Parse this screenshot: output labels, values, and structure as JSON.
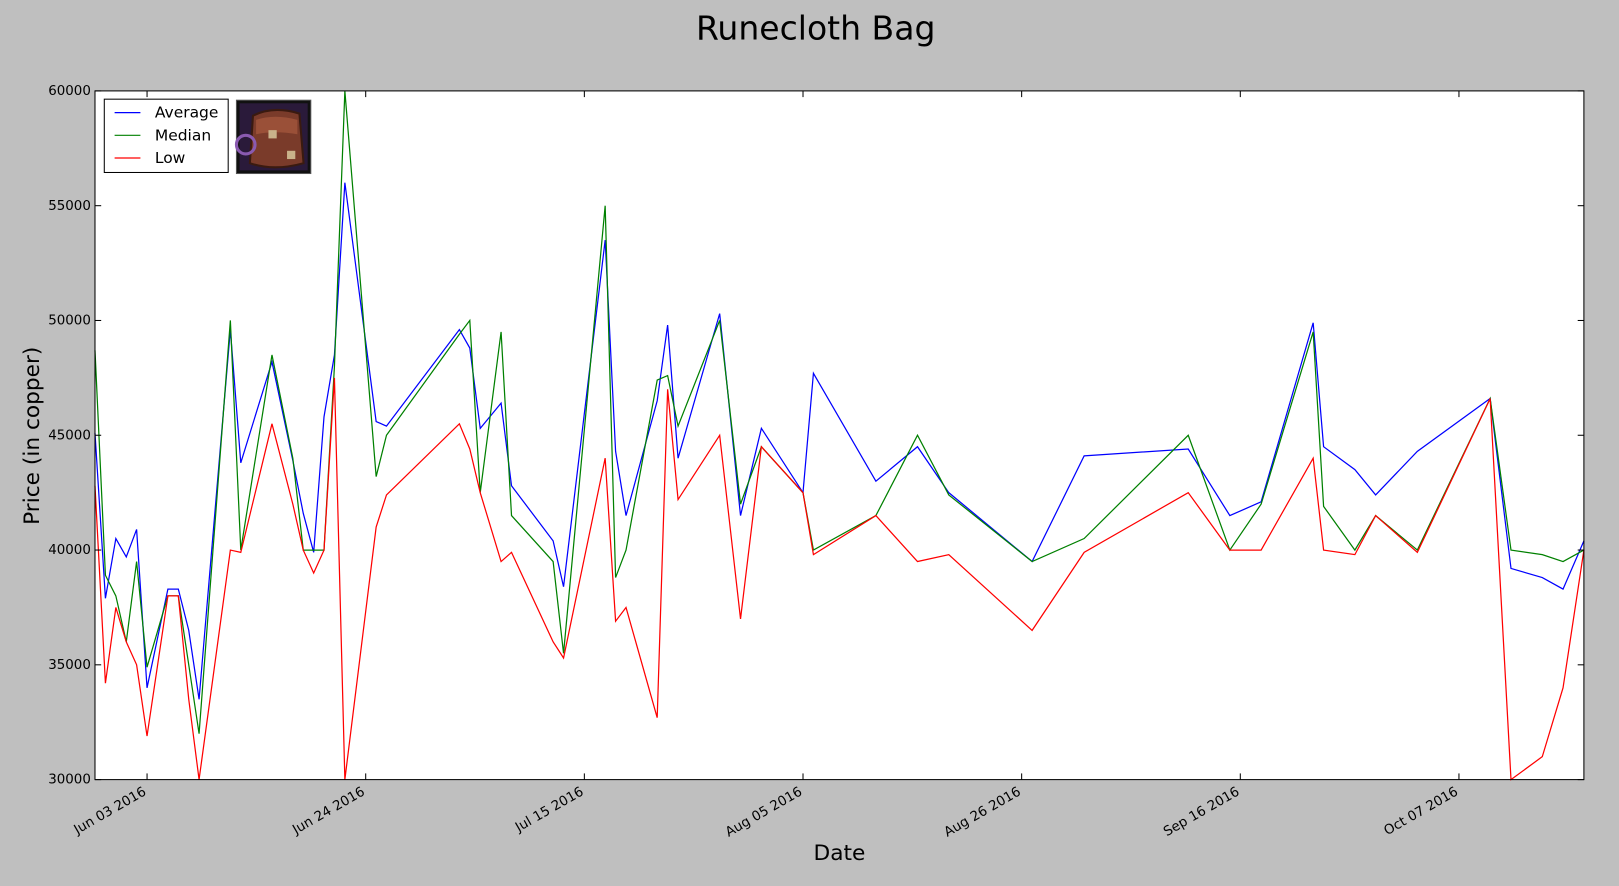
{
  "chart_data": {
    "type": "line",
    "title": "Runecloth Bag",
    "x_label": "Date",
    "y_label": "Price (in copper)",
    "legend": "upper left",
    "grid": false,
    "x": [
      "2016-05-29",
      "2016-05-30",
      "2016-05-31",
      "2016-06-01",
      "2016-06-02",
      "2016-06-03",
      "2016-06-05",
      "2016-06-06",
      "2016-06-07",
      "2016-06-08",
      "2016-06-11",
      "2016-06-12",
      "2016-06-15",
      "2016-06-17",
      "2016-06-18",
      "2016-06-19",
      "2016-06-20",
      "2016-06-21",
      "2016-06-22",
      "2016-06-25",
      "2016-06-26",
      "2016-07-03",
      "2016-07-04",
      "2016-07-05",
      "2016-07-07",
      "2016-07-08",
      "2016-07-12",
      "2016-07-13",
      "2016-07-17",
      "2016-07-18",
      "2016-07-19",
      "2016-07-22",
      "2016-07-23",
      "2016-07-24",
      "2016-07-28",
      "2016-07-30",
      "2016-08-01",
      "2016-08-05",
      "2016-08-06",
      "2016-08-12",
      "2016-08-16",
      "2016-08-19",
      "2016-08-27",
      "2016-09-01",
      "2016-09-11",
      "2016-09-15",
      "2016-09-18",
      "2016-09-23",
      "2016-09-24",
      "2016-09-27",
      "2016-09-29",
      "2016-10-03",
      "2016-10-10",
      "2016-10-12",
      "2016-10-15",
      "2016-10-17",
      "2016-10-19"
    ],
    "series": [
      {
        "name": "Average",
        "color": "#0000ff",
        "values": [
          45100,
          37900,
          40500,
          39700,
          40900,
          34000,
          38300,
          38300,
          36500,
          33500,
          49600,
          43800,
          48200,
          43900,
          41600,
          39900,
          45800,
          48500,
          56000,
          45600,
          45400,
          49600,
          48800,
          45300,
          46400,
          42800,
          40400,
          38400,
          53500,
          44300,
          41500,
          46500,
          49800,
          44000,
          50300,
          41500,
          45300,
          42500,
          47700,
          43000,
          44500,
          42500,
          39500,
          44100,
          44400,
          41500,
          42100,
          49900,
          44500,
          43500,
          42400,
          44300,
          46600,
          39200,
          38800,
          38300,
          40400
        ]
      },
      {
        "name": "Median",
        "color": "#008000",
        "values": [
          48700,
          38900,
          38000,
          36000,
          39500,
          34900,
          38000,
          38000,
          35000,
          32000,
          50000,
          40000,
          48500,
          44000,
          40000,
          40000,
          40000,
          48000,
          60000,
          43200,
          45000,
          49400,
          50000,
          42500,
          49500,
          41500,
          39500,
          35500,
          55000,
          38800,
          40000,
          47400,
          47600,
          45400,
          50000,
          42000,
          44500,
          42500,
          40000,
          41500,
          45000,
          42400,
          39500,
          40500,
          45000,
          40000,
          42000,
          49500,
          41900,
          40000,
          41500,
          40000,
          46600,
          40000,
          39800,
          39500,
          40000
        ]
      },
      {
        "name": "Low",
        "color": "#ff0000",
        "values": [
          42800,
          34200,
          37500,
          36000,
          35000,
          31900,
          38000,
          38000,
          33500,
          30000,
          40000,
          39900,
          45500,
          42000,
          40000,
          39000,
          40000,
          47500,
          30000,
          41000,
          42400,
          45500,
          44400,
          42500,
          39500,
          39900,
          36000,
          35300,
          44000,
          36900,
          37500,
          32700,
          47000,
          42200,
          45000,
          37000,
          44500,
          42500,
          39800,
          41500,
          39500,
          39800,
          36500,
          39900,
          42500,
          40000,
          40000,
          44000,
          40000,
          39800,
          41500,
          39900,
          46600,
          30000,
          31000,
          34000,
          40000
        ]
      }
    ],
    "xlim": [
      "2016-05-29",
      "2016-10-19"
    ],
    "xticks": [
      {
        "value": "2016-06-03",
        "label": "Jun 03 2016"
      },
      {
        "value": "2016-06-24",
        "label": "Jun 24 2016"
      },
      {
        "value": "2016-07-15",
        "label": "Jul 15 2016"
      },
      {
        "value": "2016-08-05",
        "label": "Aug 05 2016"
      },
      {
        "value": "2016-08-26",
        "label": "Aug 26 2016"
      },
      {
        "value": "2016-09-16",
        "label": "Sep 16 2016"
      },
      {
        "value": "2016-10-07",
        "label": "Oct 07 2016"
      }
    ],
    "ylim": [
      30000,
      60000
    ],
    "yticks": [
      30000,
      35000,
      40000,
      45000,
      50000,
      55000,
      60000
    ]
  }
}
